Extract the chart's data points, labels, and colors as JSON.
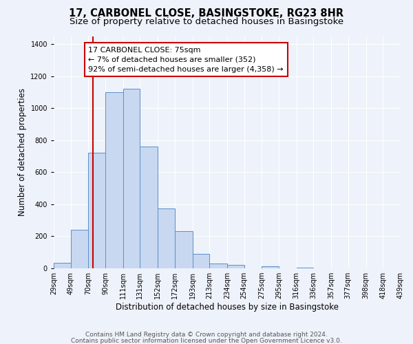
{
  "title": "17, CARBONEL CLOSE, BASINGSTOKE, RG23 8HR",
  "subtitle": "Size of property relative to detached houses in Basingstoke",
  "xlabel": "Distribution of detached houses by size in Basingstoke",
  "ylabel": "Number of detached properties",
  "bin_labels": [
    "29sqm",
    "49sqm",
    "70sqm",
    "90sqm",
    "111sqm",
    "131sqm",
    "152sqm",
    "172sqm",
    "193sqm",
    "213sqm",
    "234sqm",
    "254sqm",
    "275sqm",
    "295sqm",
    "316sqm",
    "336sqm",
    "357sqm",
    "377sqm",
    "398sqm",
    "418sqm",
    "439sqm"
  ],
  "bin_edges": [
    29,
    49,
    70,
    90,
    111,
    131,
    152,
    172,
    193,
    213,
    234,
    254,
    275,
    295,
    316,
    336,
    357,
    377,
    398,
    418,
    439
  ],
  "bar_heights": [
    35,
    240,
    720,
    1100,
    1120,
    760,
    375,
    230,
    90,
    30,
    20,
    0,
    15,
    0,
    5,
    0,
    0,
    0,
    0,
    0
  ],
  "bar_facecolor": "#c8d8f0",
  "bar_edgecolor": "#5b8fc9",
  "vline_x": 75,
  "vline_color": "#cc0000",
  "annotation_title": "17 CARBONEL CLOSE: 75sqm",
  "annotation_line1": "← 7% of detached houses are smaller (352)",
  "annotation_line2": "92% of semi-detached houses are larger (4,358) →",
  "annotation_box_edgecolor": "#cc0000",
  "annotation_box_facecolor": "#ffffff",
  "ylim": [
    0,
    1450
  ],
  "yticks": [
    0,
    200,
    400,
    600,
    800,
    1000,
    1200,
    1400
  ],
  "footer1": "Contains HM Land Registry data © Crown copyright and database right 2024.",
  "footer2": "Contains public sector information licensed under the Open Government Licence v3.0.",
  "bg_color": "#eef2fa",
  "plot_bg_color": "#eef2fa",
  "grid_color": "#ffffff",
  "title_fontsize": 10.5,
  "subtitle_fontsize": 9.5,
  "axis_label_fontsize": 8.5,
  "tick_fontsize": 7,
  "footer_fontsize": 6.5,
  "annot_fontsize": 8
}
